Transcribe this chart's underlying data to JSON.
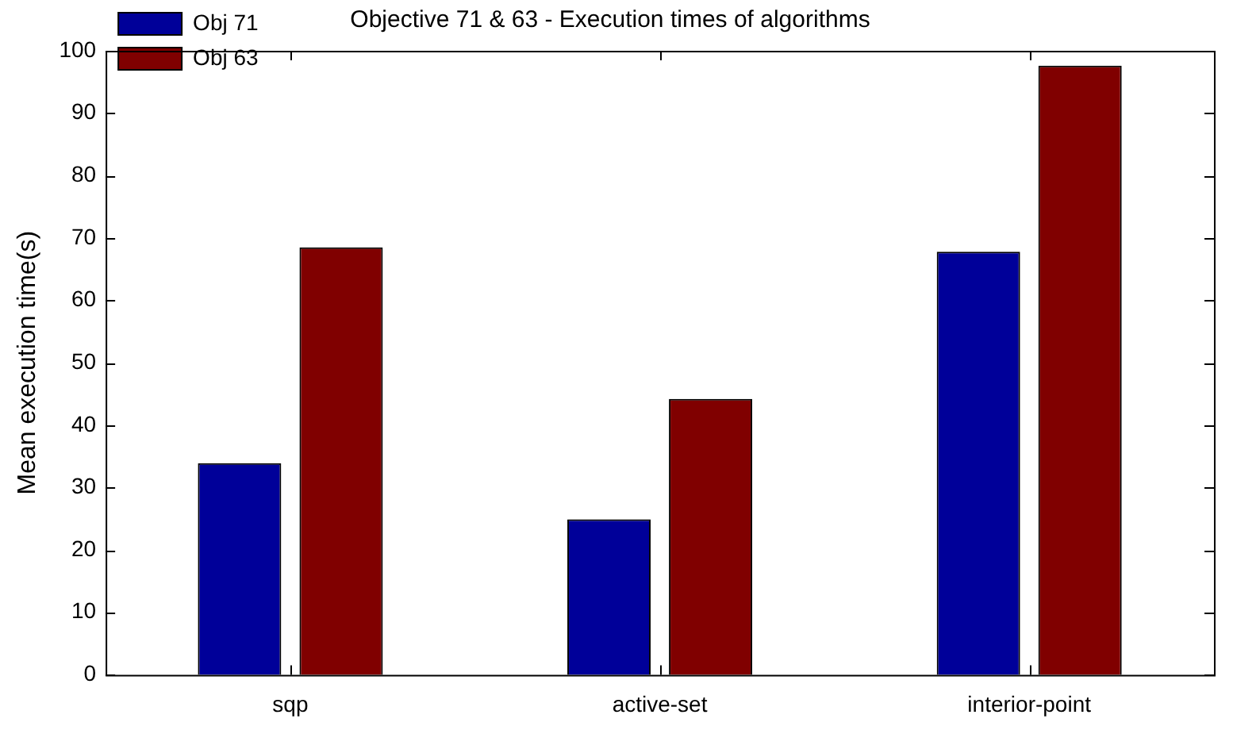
{
  "chart_data": {
    "type": "bar",
    "title": "Objective 71 & 63 - Execution times of algorithms",
    "ylabel": "Mean execution time(s)",
    "categories": [
      "sqp",
      "active-set",
      "interior-point"
    ],
    "series": [
      {
        "name": "Obj 71",
        "color": "#000099",
        "values": [
          33.9,
          24.9,
          67.8
        ]
      },
      {
        "name": "Obj 63",
        "color": "#800000",
        "values": [
          68.5,
          44.2,
          97.6
        ]
      }
    ],
    "ylim": [
      0,
      100
    ],
    "yticks": [
      0,
      10,
      20,
      30,
      40,
      50,
      60,
      70,
      80,
      90,
      100
    ],
    "grid": false,
    "legend": "top left"
  }
}
